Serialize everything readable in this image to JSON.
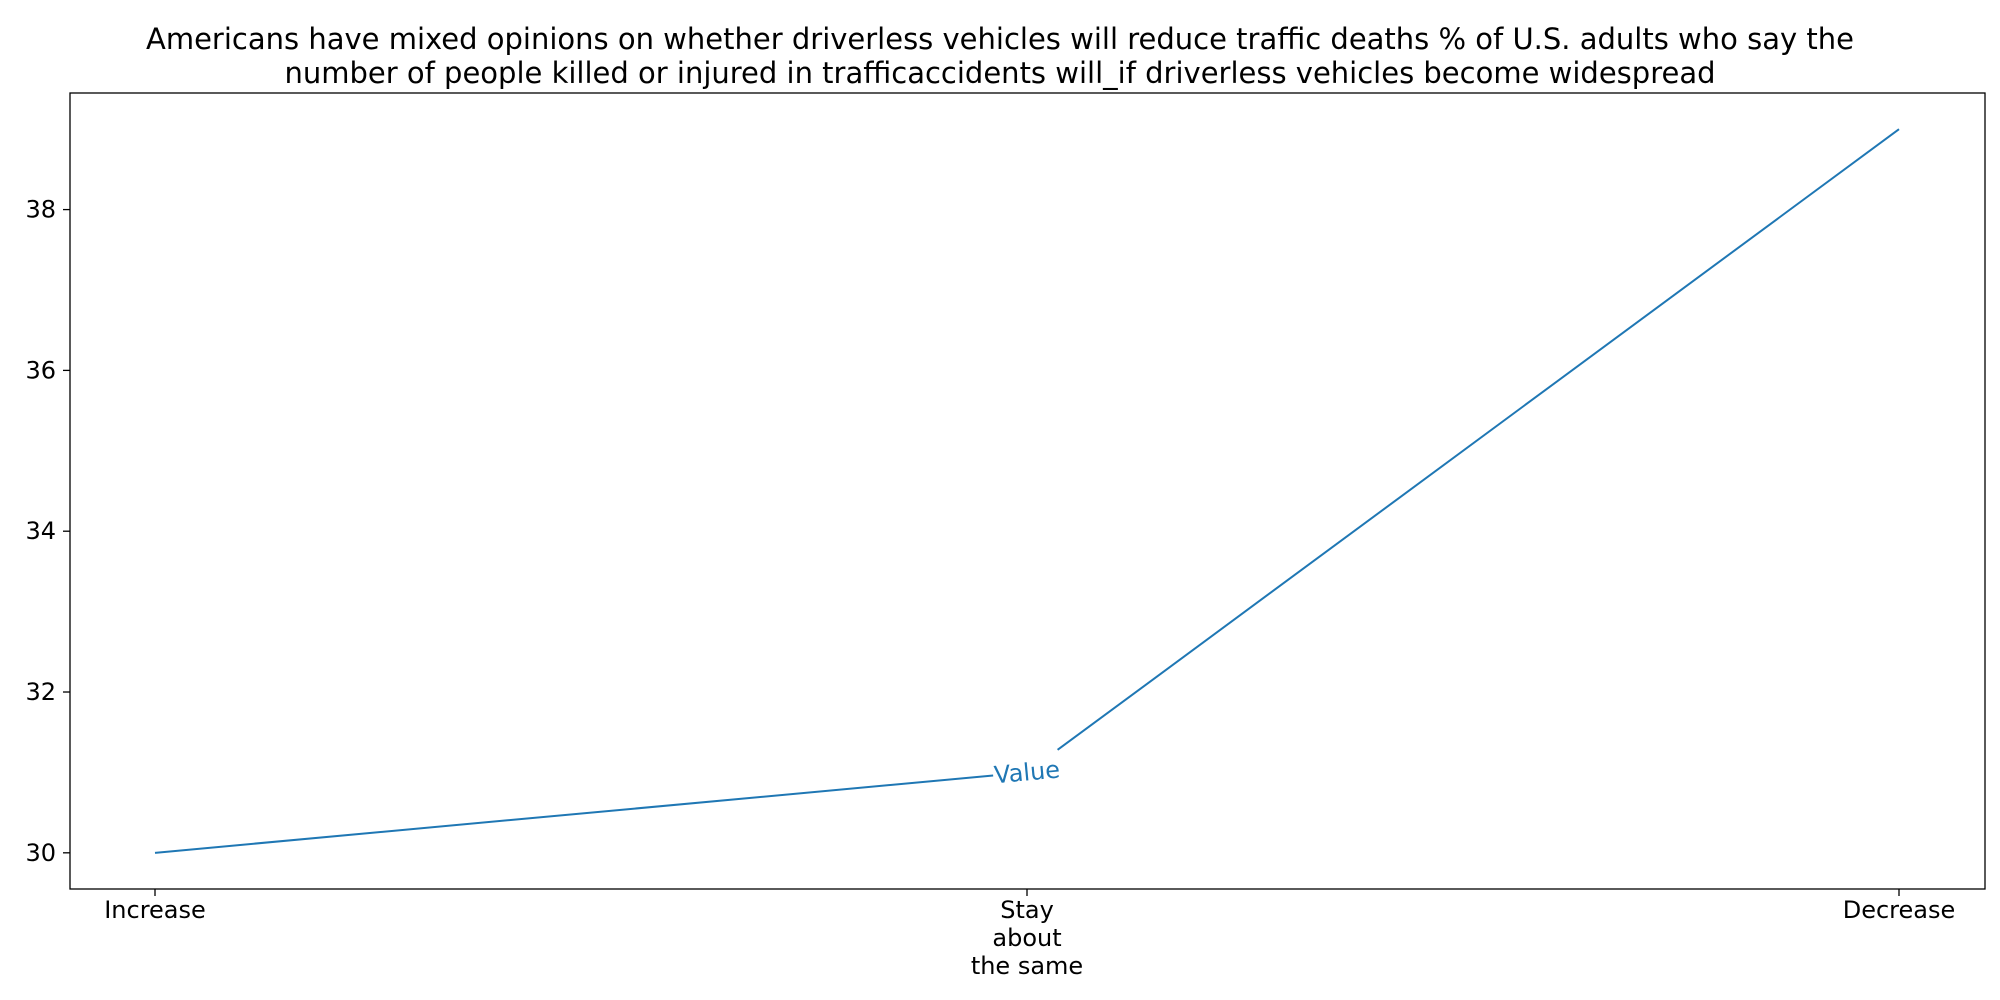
{
  "chart_data": {
    "type": "line",
    "title_lines": [
      "Americans have mixed opinions on whether driverless vehicles will reduce traffic deaths % of U.S. adults who say the",
      "number of people killed or injured in trafficaccidents will_if driverless vehicles become widespread"
    ],
    "categories": [
      [
        "Increase"
      ],
      [
        "Stay",
        "about",
        "the same"
      ],
      [
        "Decrease"
      ]
    ],
    "series": [
      {
        "name": "Value",
        "values": [
          30,
          31,
          39
        ],
        "color": "#1f77b4"
      }
    ],
    "yticks": [
      "30",
      "32",
      "34",
      "36",
      "38"
    ],
    "ylim": [
      29.55,
      39.45
    ],
    "grid": false,
    "legend": "none"
  }
}
